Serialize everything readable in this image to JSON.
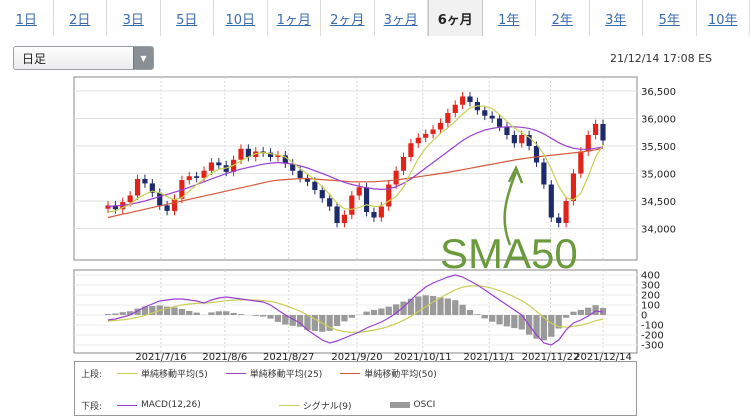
{
  "tabs": [
    {
      "label": "1日"
    },
    {
      "label": "2日"
    },
    {
      "label": "3日"
    },
    {
      "label": "5日"
    },
    {
      "label": "10日"
    },
    {
      "label": "1ヶ月"
    },
    {
      "label": "2ヶ月"
    },
    {
      "label": "3ヶ月"
    },
    {
      "label": "6ヶ月",
      "active": true
    },
    {
      "label": "1年"
    },
    {
      "label": "2年"
    },
    {
      "label": "3年"
    },
    {
      "label": "5年"
    },
    {
      "label": "10年"
    }
  ],
  "period_select": {
    "value": "日足"
  },
  "timestamp": "21/12/14 17:08 ES",
  "annotation": {
    "text": "SMA50",
    "color": "#6a9a3c"
  },
  "colors": {
    "up_candle": "#e2231a",
    "down_candle": "#1d2a6b",
    "sma5": "#c9cf52",
    "sma25": "#9a3fd0",
    "sma50": "#d4583a",
    "macd": "#9a3fd0",
    "signal": "#c9cf52",
    "osci": "#9a9a9a"
  },
  "legend": {
    "upper_title": "上段:",
    "lower_title": "下段:",
    "upper_items": [
      {
        "label": "単純移動平均(5)",
        "color": "#c9cf52"
      },
      {
        "label": "単純移動平均(25)",
        "color": "#9a3fd0"
      },
      {
        "label": "単純移動平均(50)",
        "color": "#d4583a"
      }
    ],
    "lower_items": [
      {
        "label": "MACD(12,26)",
        "color": "#9a3fd0",
        "kind": "line"
      },
      {
        "label": "シグナル(9)",
        "color": "#c9cf52",
        "kind": "line"
      },
      {
        "label": "OSCI",
        "color": "#9a9a9a",
        "kind": "bar"
      }
    ]
  },
  "chart_data": [
    {
      "type": "candlestick",
      "panel": "upper",
      "y_ticks": [
        "36,500",
        "36,000",
        "35,500",
        "35,000",
        "34,500",
        "34,000"
      ],
      "ylim": [
        33500,
        36700
      ],
      "x_ticks": [
        "2021/7/16",
        "2021/8/6",
        "2021/8/27",
        "2021/9/20",
        "2021/10/11",
        "2021/11/1",
        "2021/11/22",
        "2021/12/14"
      ],
      "closes": [
        34420,
        34350,
        34480,
        34600,
        34900,
        34820,
        34650,
        34420,
        34320,
        34540,
        34880,
        34950,
        34920,
        35050,
        35200,
        35150,
        35030,
        35250,
        35450,
        35300,
        35400,
        35380,
        35300,
        35330,
        35180,
        35050,
        34920,
        34850,
        34700,
        34550,
        34400,
        34100,
        34250,
        34600,
        34750,
        34300,
        34200,
        34400,
        34800,
        35050,
        35300,
        35550,
        35650,
        35720,
        35800,
        35920,
        36100,
        36250,
        36400,
        36300,
        36150,
        36050,
        36000,
        35850,
        35700,
        35550,
        35700,
        35500,
        35200,
        34800,
        34200,
        34100,
        34500,
        35000,
        35400,
        35700,
        35900,
        35600
      ],
      "sma5": [
        34300,
        34320,
        34380,
        34440,
        34550,
        34620,
        34680,
        34650,
        34580,
        34520,
        34560,
        34680,
        34800,
        34900,
        35000,
        35080,
        35100,
        35150,
        35230,
        35300,
        35360,
        35380,
        35360,
        35340,
        35300,
        35200,
        35090,
        34990,
        34880,
        34760,
        34620,
        34460,
        34360,
        34350,
        34380,
        34430,
        34400,
        34410,
        34500,
        34580,
        34750,
        35020,
        35270,
        35460,
        35600,
        35730,
        35830,
        35950,
        36080,
        36190,
        36230,
        36220,
        36180,
        36070,
        35950,
        35830,
        35740,
        35660,
        35530,
        35350,
        35080,
        34770,
        34560,
        34520,
        34640,
        34950,
        35300,
        35520
      ],
      "sma25": [
        34400,
        34410,
        34420,
        34440,
        34470,
        34500,
        34540,
        34580,
        34620,
        34660,
        34700,
        34750,
        34800,
        34850,
        34900,
        34950,
        35000,
        35040,
        35080,
        35110,
        35140,
        35170,
        35190,
        35200,
        35190,
        35170,
        35140,
        35100,
        35050,
        35000,
        34950,
        34890,
        34840,
        34800,
        34770,
        34740,
        34720,
        34710,
        34720,
        34760,
        34820,
        34900,
        35000,
        35100,
        35200,
        35300,
        35400,
        35500,
        35600,
        35680,
        35740,
        35790,
        35820,
        35840,
        35850,
        35850,
        35840,
        35820,
        35780,
        35720,
        35640,
        35560,
        35500,
        35460,
        35440,
        35440,
        35460,
        35480
      ],
      "sma50": [
        34200,
        34230,
        34260,
        34290,
        34320,
        34350,
        34380,
        34410,
        34440,
        34470,
        34500,
        34530,
        34560,
        34590,
        34620,
        34650,
        34680,
        34710,
        34740,
        34770,
        34800,
        34830,
        34860,
        34880,
        34890,
        34900,
        34905,
        34905,
        34900,
        34890,
        34880,
        34870,
        34860,
        34850,
        34850,
        34850,
        34850,
        34860,
        34870,
        34885,
        34900,
        34920,
        34940,
        34960,
        34980,
        35000,
        35020,
        35045,
        35070,
        35095,
        35120,
        35145,
        35170,
        35195,
        35220,
        35245,
        35265,
        35285,
        35300,
        35315,
        35330,
        35345,
        35360,
        35375,
        35390,
        35410,
        35430,
        35460
      ]
    },
    {
      "type": "line+bar",
      "panel": "lower",
      "y_ticks": [
        "400",
        "300",
        "200",
        "100",
        "0",
        "-100",
        "-200",
        "-300"
      ],
      "ylim": [
        -350,
        420
      ],
      "macd": [
        -50,
        -40,
        -20,
        0,
        40,
        80,
        110,
        140,
        150,
        160,
        160,
        150,
        140,
        120,
        150,
        170,
        180,
        170,
        160,
        150,
        140,
        130,
        100,
        50,
        0,
        -40,
        -80,
        -150,
        -200,
        -250,
        -280,
        -260,
        -230,
        -200,
        -170,
        -130,
        -100,
        -70,
        -30,
        20,
        80,
        150,
        220,
        280,
        320,
        350,
        380,
        400,
        380,
        340,
        300,
        250,
        200,
        150,
        100,
        50,
        0,
        -100,
        -200,
        -280,
        -300,
        -250,
        -150,
        -80,
        -50,
        -10,
        40,
        30
      ],
      "signal": [
        -60,
        -55,
        -48,
        -38,
        -24,
        -4,
        20,
        44,
        66,
        84,
        100,
        110,
        116,
        118,
        124,
        133,
        143,
        149,
        151,
        151,
        149,
        145,
        136,
        119,
        95,
        68,
        38,
        0,
        -40,
        -82,
        -122,
        -150,
        -166,
        -173,
        -172,
        -164,
        -151,
        -135,
        -114,
        -87,
        -54,
        -13,
        34,
        83,
        130,
        174,
        215,
        252,
        278,
        290,
        292,
        284,
        267,
        243,
        214,
        181,
        145,
        96,
        37,
        -27,
        -82,
        -115,
        -122,
        -113,
        -101,
        -83,
        -58,
        -40
      ],
      "osci": [
        10,
        15,
        28,
        38,
        64,
        84,
        90,
        96,
        84,
        76,
        60,
        40,
        24,
        2,
        26,
        37,
        37,
        21,
        9,
        -1,
        -9,
        -15,
        -36,
        -69,
        -95,
        -108,
        -118,
        -150,
        -160,
        -168,
        -158,
        -110,
        -64,
        -27,
        2,
        34,
        51,
        65,
        84,
        107,
        134,
        163,
        186,
        197,
        190,
        176,
        165,
        148,
        102,
        50,
        8,
        -34,
        -67,
        -93,
        -114,
        -131,
        -145,
        -196,
        -237,
        -253,
        -218,
        -135,
        -28,
        33,
        51,
        73,
        98,
        70
      ]
    }
  ]
}
